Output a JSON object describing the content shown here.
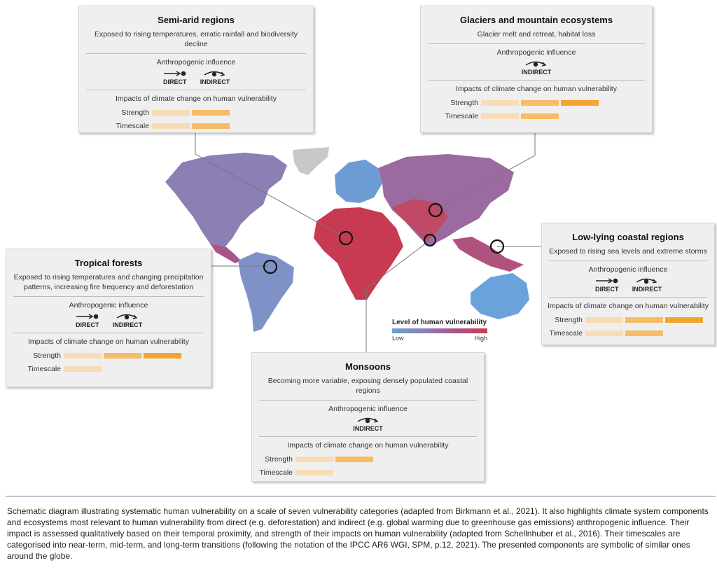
{
  "panels": [
    {
      "id": "semi-arid",
      "title": "Semi-arid regions",
      "description": "Exposed to rising temperatures, erratic rainfall and biodiversity decline",
      "influence_heading": "Anthropogenic influence",
      "influences": [
        "DIRECT",
        "INDIRECT"
      ],
      "impacts_heading": "Impacts of climate change on human vulnerability",
      "strength_label": "Strength",
      "strength_level": 2,
      "timescale_label": "Timescale",
      "timescale_level": 2
    },
    {
      "id": "glaciers",
      "title": "Glaciers and mountain ecosystems",
      "description": "Glacier melt and retreat, habitat loss",
      "influence_heading": "Anthropogenic influence",
      "influences": [
        "INDIRECT"
      ],
      "impacts_heading": "Impacts of climate change on human vulnerability",
      "strength_label": "Strength",
      "strength_level": 3,
      "timescale_label": "Timescale",
      "timescale_level": 2
    },
    {
      "id": "tropical",
      "title": "Tropical forests",
      "description": "Exposed to rising temperatures and changing precipitation patterns, increasing fire frequency and deforestation",
      "influence_heading": "Anthropogenic influence",
      "influences": [
        "DIRECT",
        "INDIRECT"
      ],
      "impacts_heading": "Impacts of climate change on human vulnerability",
      "strength_label": "Strength",
      "strength_level": 3,
      "timescale_label": "Timescale",
      "timescale_level": 1
    },
    {
      "id": "coastal",
      "title": "Low-lying coastal regions",
      "description": "Exposed to rising sea levels and extreme storms",
      "influence_heading": "Anthropogenic influence",
      "influences": [
        "DIRECT",
        "INDIRECT"
      ],
      "impacts_heading": "Impacts of climate change on human vulnerability",
      "strength_label": "Strength",
      "strength_level": 3,
      "timescale_label": "Timescale",
      "timescale_level": 2
    },
    {
      "id": "monsoons",
      "title": "Monsoons",
      "description": "Becoming more variable, exposing densely populated coastal regions",
      "influence_heading": "Anthropogenic influence",
      "influences": [
        "INDIRECT"
      ],
      "impacts_heading": "Impacts of climate change on human vulnerability",
      "strength_label": "Strength",
      "strength_level": 2,
      "timescale_label": "Timescale",
      "timescale_level": 1
    }
  ],
  "legend": {
    "title": "Level of human vulnerability",
    "low": "Low",
    "high": "High",
    "colors": [
      "#6a9fd8",
      "#8a80b6",
      "#a8558a",
      "#d03a4c"
    ]
  },
  "caption": "Schematic diagram illustrating systematic human vulnerability on a scale of seven vulnerability categories (adapted from Birkmann et al., 2021). It also highlights climate system components and ecosystems most relevant to human vulnerability from direct (e.g. deforestation) and indirect (e.g. global warming due to greenhouse gas emissions) anthropogenic influence. Their impact is assessed qualitatively based on their temporal proximity, and strength of their impacts on human vulnerability (adapted from Schellnhuber et al., 2016). Their timescales are categorised into near-term, mid-term, and long-term transitions (following the notation of the IPCC AR6 WGI, SPM, p.12, 2021). The presented components are symbolic of similar ones around the globe."
}
